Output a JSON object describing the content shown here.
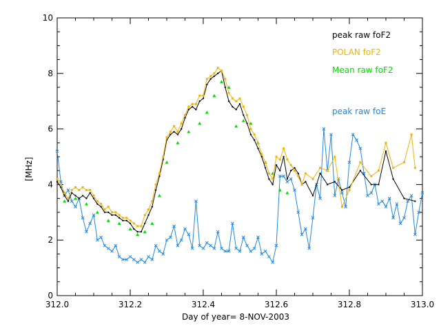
{
  "chart_data": {
    "type": "line",
    "title": "",
    "xlabel": "Day of year= 8-NOV-2003",
    "ylabel": "[MHz]",
    "xlim": [
      312.0,
      313.0
    ],
    "ylim": [
      0,
      10
    ],
    "x_ticks": [
      "312.0",
      "312.2",
      "312.4",
      "312.6",
      "312.8",
      "313.0"
    ],
    "y_ticks": [
      "0",
      "2",
      "4",
      "6",
      "8",
      "10"
    ],
    "legend": [
      {
        "label": "peak raw foF2",
        "color": "#000000"
      },
      {
        "label": "POLAN foF2",
        "color": "#f0b400"
      },
      {
        "label": "Mean raw foF2",
        "color": "#00dd00"
      },
      {
        "label": "peak raw foE",
        "color": "#1e88e5"
      }
    ],
    "series": [
      {
        "name": "peak raw foF2",
        "color": "#000000",
        "x": [
          312.0,
          312.01,
          312.02,
          312.03,
          312.04,
          312.05,
          312.06,
          312.07,
          312.08,
          312.09,
          312.1,
          312.11,
          312.12,
          312.13,
          312.14,
          312.15,
          312.16,
          312.17,
          312.18,
          312.19,
          312.2,
          312.21,
          312.22,
          312.23,
          312.24,
          312.25,
          312.26,
          312.27,
          312.28,
          312.29,
          312.3,
          312.31,
          312.32,
          312.33,
          312.34,
          312.35,
          312.36,
          312.37,
          312.38,
          312.39,
          312.4,
          312.41,
          312.42,
          312.43,
          312.44,
          312.45,
          312.46,
          312.47,
          312.48,
          312.49,
          312.5,
          312.51,
          312.52,
          312.53,
          312.54,
          312.55,
          312.56,
          312.57,
          312.58,
          312.59,
          312.6,
          312.61,
          312.62,
          312.63,
          312.64,
          312.65,
          312.66,
          312.67,
          312.68,
          312.7,
          312.72,
          312.74,
          312.76,
          312.78,
          312.8,
          312.83,
          312.86,
          312.88,
          312.9,
          312.92,
          312.95,
          312.98
        ],
        "values": [
          4.1,
          3.9,
          3.6,
          3.4,
          3.7,
          3.6,
          3.5,
          3.6,
          3.5,
          3.7,
          3.5,
          3.3,
          3.2,
          3.0,
          3.0,
          2.9,
          2.9,
          2.8,
          2.7,
          2.7,
          2.6,
          2.4,
          2.3,
          2.3,
          2.6,
          2.9,
          3.2,
          3.8,
          4.3,
          4.9,
          5.6,
          5.8,
          5.9,
          5.8,
          6.0,
          6.4,
          6.7,
          6.8,
          6.7,
          7.0,
          7.1,
          7.6,
          7.8,
          7.9,
          8.0,
          8.1,
          7.5,
          7.0,
          6.8,
          6.7,
          6.9,
          6.5,
          6.2,
          5.8,
          5.6,
          5.3,
          5.0,
          4.6,
          4.2,
          4.0,
          4.7,
          4.5,
          5.0,
          4.2,
          4.5,
          4.6,
          4.4,
          4.0,
          4.1,
          3.6,
          4.4,
          4.0,
          4.1,
          3.8,
          3.9,
          4.5,
          4.0,
          4.0,
          5.2,
          4.2,
          3.5,
          3.4
        ]
      },
      {
        "name": "POLAN foF2",
        "color": "#f0b400",
        "x": [
          312.0,
          312.01,
          312.02,
          312.03,
          312.04,
          312.05,
          312.06,
          312.07,
          312.08,
          312.09,
          312.1,
          312.11,
          312.12,
          312.13,
          312.14,
          312.15,
          312.16,
          312.17,
          312.18,
          312.19,
          312.2,
          312.21,
          312.22,
          312.23,
          312.24,
          312.25,
          312.26,
          312.27,
          312.28,
          312.29,
          312.3,
          312.31,
          312.32,
          312.33,
          312.34,
          312.35,
          312.36,
          312.37,
          312.38,
          312.39,
          312.4,
          312.41,
          312.42,
          312.43,
          312.44,
          312.45,
          312.46,
          312.47,
          312.48,
          312.49,
          312.5,
          312.51,
          312.52,
          312.53,
          312.54,
          312.55,
          312.56,
          312.57,
          312.58,
          312.59,
          312.6,
          312.61,
          312.62,
          312.63,
          312.64,
          312.65,
          312.66,
          312.67,
          312.68,
          312.7,
          312.72,
          312.74,
          312.76,
          312.78,
          312.8,
          312.83,
          312.86,
          312.88,
          312.9,
          312.92,
          312.95,
          312.97,
          312.98
        ],
        "values": [
          4.2,
          4.0,
          3.7,
          3.5,
          3.8,
          3.9,
          3.8,
          3.9,
          3.8,
          3.8,
          3.6,
          3.4,
          3.3,
          3.1,
          3.2,
          3.0,
          3.0,
          2.9,
          2.8,
          2.8,
          2.7,
          2.6,
          2.5,
          2.5,
          2.9,
          3.1,
          3.4,
          4.0,
          4.4,
          5.0,
          5.7,
          5.9,
          6.1,
          5.9,
          6.2,
          6.5,
          6.8,
          6.9,
          6.9,
          7.2,
          7.2,
          7.8,
          7.9,
          8.0,
          8.2,
          8.1,
          7.8,
          7.3,
          7.1,
          7.0,
          7.1,
          6.8,
          6.5,
          6.0,
          5.8,
          5.5,
          5.1,
          4.8,
          4.4,
          4.2,
          5.0,
          4.9,
          5.3,
          4.9,
          4.7,
          4.5,
          4.3,
          4.0,
          4.4,
          4.2,
          4.6,
          4.5,
          5.0,
          3.2,
          3.8,
          4.8,
          4.3,
          4.5,
          5.5,
          4.6,
          4.8,
          5.8,
          4.6
        ]
      },
      {
        "name": "Mean raw foF2",
        "color": "#00dd00",
        "x": [
          312.02,
          312.05,
          312.08,
          312.11,
          312.14,
          312.17,
          312.2,
          312.22,
          312.24,
          312.26,
          312.28,
          312.3,
          312.33,
          312.36,
          312.39,
          312.41,
          312.43,
          312.45,
          312.47,
          312.49,
          312.51,
          312.53,
          312.55,
          312.57,
          312.59,
          312.61,
          312.63
        ],
        "values": [
          3.4,
          3.5,
          3.3,
          3.0,
          2.7,
          2.6,
          2.4,
          2.2,
          2.3,
          2.6,
          3.6,
          4.8,
          5.5,
          5.9,
          6.2,
          6.6,
          7.2,
          7.7,
          7.5,
          6.1,
          6.3,
          6.2,
          5.5,
          4.8,
          4.4,
          3.8,
          3.7
        ]
      },
      {
        "name": "peak raw foE",
        "color": "#1e88e5",
        "x": [
          312.0,
          312.01,
          312.02,
          312.03,
          312.04,
          312.05,
          312.06,
          312.07,
          312.08,
          312.09,
          312.1,
          312.11,
          312.12,
          312.13,
          312.14,
          312.15,
          312.16,
          312.17,
          312.18,
          312.19,
          312.2,
          312.21,
          312.22,
          312.23,
          312.24,
          312.25,
          312.26,
          312.27,
          312.28,
          312.29,
          312.3,
          312.31,
          312.32,
          312.33,
          312.34,
          312.35,
          312.36,
          312.37,
          312.38,
          312.39,
          312.4,
          312.41,
          312.42,
          312.43,
          312.44,
          312.45,
          312.46,
          312.47,
          312.48,
          312.49,
          312.5,
          312.51,
          312.52,
          312.53,
          312.54,
          312.55,
          312.56,
          312.57,
          312.58,
          312.59,
          312.6,
          312.61,
          312.62,
          312.63,
          312.64,
          312.65,
          312.66,
          312.67,
          312.68,
          312.69,
          312.7,
          312.71,
          312.72,
          312.73,
          312.74,
          312.75,
          312.76,
          312.77,
          312.78,
          312.79,
          312.8,
          312.81,
          312.82,
          312.83,
          312.84,
          312.85,
          312.86,
          312.87,
          312.88,
          312.89,
          312.9,
          312.91,
          312.92,
          312.93,
          312.94,
          312.95,
          312.96,
          312.97,
          312.98,
          312.99,
          313.0
        ],
        "values": [
          5.2,
          4.1,
          3.6,
          3.8,
          3.4,
          3.2,
          3.5,
          2.8,
          2.3,
          2.6,
          2.9,
          2.0,
          2.1,
          1.8,
          1.7,
          1.6,
          1.8,
          1.4,
          1.3,
          1.3,
          1.4,
          1.3,
          1.2,
          1.3,
          1.2,
          1.4,
          1.3,
          1.8,
          1.6,
          1.5,
          2.0,
          2.1,
          2.5,
          1.8,
          2.0,
          2.4,
          2.2,
          1.7,
          3.4,
          1.8,
          1.7,
          1.9,
          1.8,
          1.7,
          2.3,
          1.7,
          1.6,
          1.6,
          2.6,
          1.7,
          1.6,
          2.1,
          1.8,
          1.6,
          1.7,
          2.1,
          1.5,
          1.6,
          1.4,
          1.2,
          1.8,
          4.3,
          4.3,
          4.1,
          4.2,
          3.8,
          3.0,
          2.2,
          2.4,
          1.7,
          2.8,
          4.0,
          3.5,
          6.0,
          4.5,
          5.8,
          3.6,
          4.2,
          3.7,
          3.2,
          4.8,
          5.8,
          5.6,
          5.3,
          4.4,
          3.6,
          3.7,
          4.0,
          3.3,
          3.4,
          3.2,
          3.5,
          2.8,
          3.3,
          2.6,
          2.8,
          3.4,
          3.6,
          2.2,
          3.0,
          3.7
        ]
      }
    ]
  }
}
